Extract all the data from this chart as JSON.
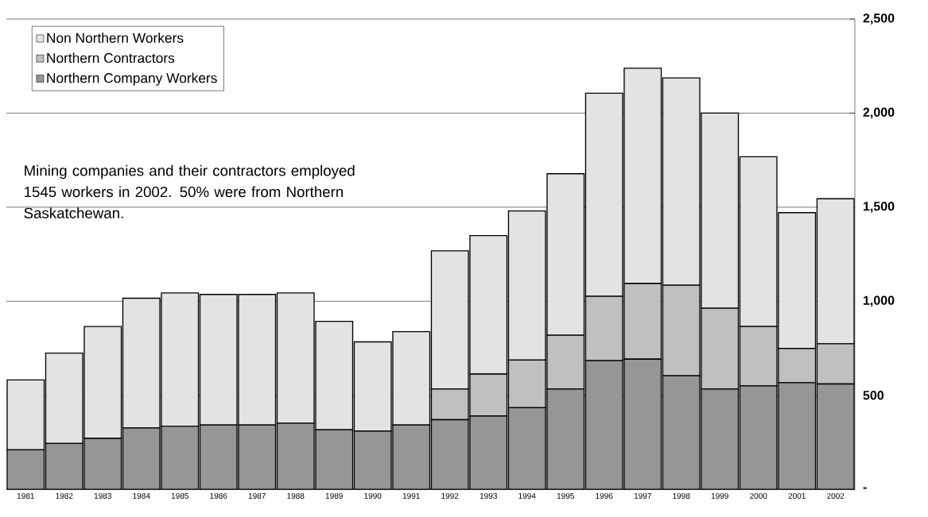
{
  "chart_data": {
    "type": "bar",
    "stacked": true,
    "categories": [
      "1981",
      "1982",
      "1983",
      "1984",
      "1985",
      "1986",
      "1987",
      "1988",
      "1989",
      "1990",
      "1991",
      "1992",
      "1993",
      "1994",
      "1995",
      "1996",
      "1997",
      "1998",
      "1999",
      "2000",
      "2001",
      "2002"
    ],
    "series": [
      {
        "name": "Northern Company Workers",
        "color": "#969696",
        "values": [
          210,
          244,
          271,
          326,
          336,
          342,
          342,
          352,
          317,
          310,
          342,
          370,
          390,
          434,
          533,
          684,
          692,
          604,
          533,
          550,
          567,
          560
        ]
      },
      {
        "name": "Northern Contractors",
        "color": "#c0c0c0",
        "values": [
          0,
          0,
          0,
          0,
          0,
          0,
          0,
          0,
          0,
          0,
          0,
          163,
          223,
          253,
          286,
          342,
          402,
          481,
          430,
          316,
          182,
          214
        ]
      },
      {
        "name": "Non Northern Workers",
        "color": "#e3e3e3",
        "values": [
          372,
          480,
          595,
          690,
          708,
          694,
          694,
          692,
          576,
          474,
          496,
          735,
          736,
          793,
          859,
          1080,
          1145,
          1102,
          1037,
          902,
          722,
          771
        ]
      }
    ],
    "ylim": [
      0,
      2500
    ],
    "yticks": [
      {
        "value": 0,
        "label": "-"
      },
      {
        "value": 500,
        "label": "500"
      },
      {
        "value": 1000,
        "label": "1,000"
      },
      {
        "value": 1500,
        "label": "1,500"
      },
      {
        "value": 2000,
        "label": "2,000"
      },
      {
        "value": 2500,
        "label": "2,500"
      }
    ],
    "grid": "y",
    "legend": "top left",
    "annotations": [
      "Mining companies and their contractors employed 1545 workers in 2002. 50% were from Northern Saskatchewan."
    ]
  }
}
